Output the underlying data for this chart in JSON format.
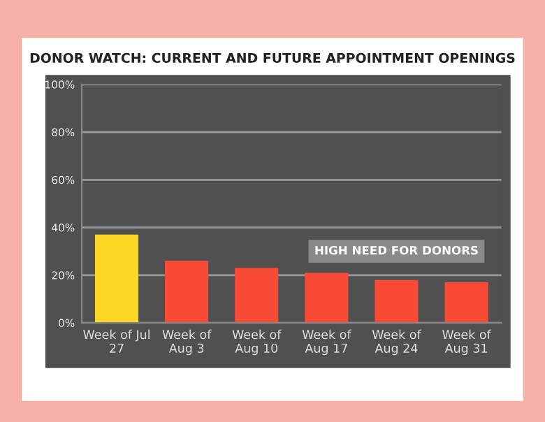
{
  "chart_data": {
    "type": "bar",
    "title": "DONOR WATCH: CURRENT AND FUTURE APPOINTMENT OPENINGS",
    "categories": [
      "Week of Jul\n27",
      "Week of\nAug 3",
      "Week of\nAug 10",
      "Week of\nAug 17",
      "Week of\nAug 24",
      "Week of\nAug 31"
    ],
    "values": [
      37,
      26,
      23,
      21,
      18,
      17
    ],
    "colors": [
      "#fbd826",
      "#f84a35",
      "#f84a35",
      "#f84a35",
      "#f84a35",
      "#f84a35"
    ],
    "ylim": [
      0,
      100
    ],
    "yticks": [
      {
        "value": 0,
        "label": "0%"
      },
      {
        "value": 20,
        "label": "20%"
      },
      {
        "value": 40,
        "label": "40%"
      },
      {
        "value": 60,
        "label": "60%"
      },
      {
        "value": 80,
        "label": "80%"
      },
      {
        "value": 100,
        "label": "100%"
      }
    ],
    "grid": "y",
    "annotations": [
      "HIGH NEED FOR DONORS"
    ]
  }
}
